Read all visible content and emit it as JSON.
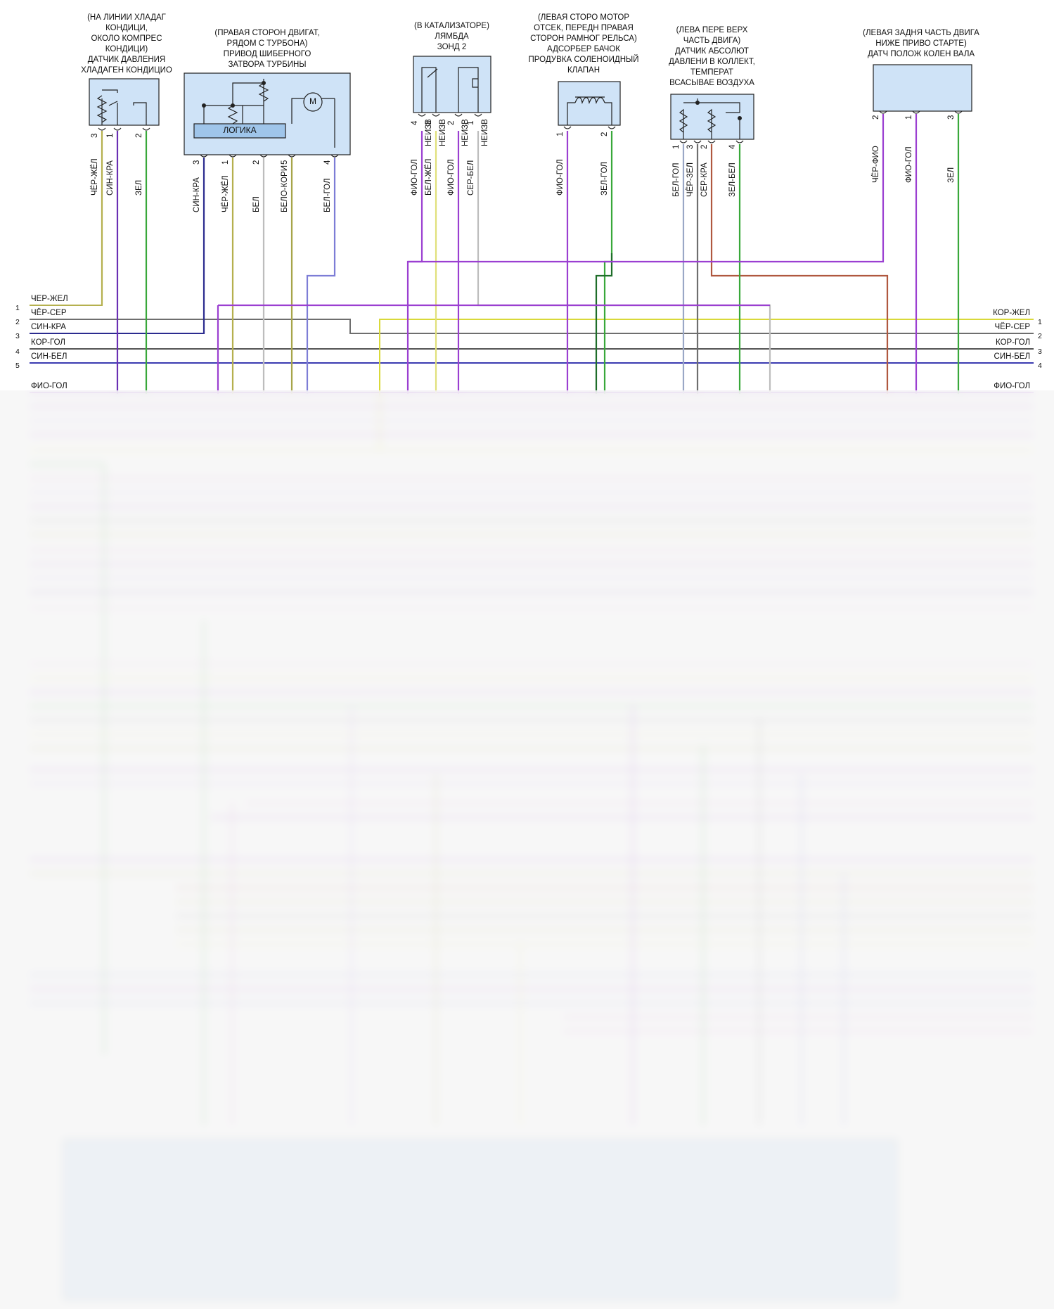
{
  "components": [
    {
      "id": "ac-sensor",
      "caption": [
        "(НА ЛИНИИ ХЛАДАГ",
        "КОНДИЦИ,",
        "ОКОЛО КОМПРЕС",
        "КОНДИЦИ)",
        "ДАТЧИК ДАВЛЕНИЯ",
        "ХЛАДАГЕН КОНДИЦИО"
      ],
      "pins": [
        "3",
        "1",
        "2"
      ],
      "wires": [
        "ЧЁР-ЖЁЛ",
        "СИН-КРА",
        "ЗЕЛ"
      ]
    },
    {
      "id": "turbo-actuator",
      "caption": [
        "(ПРАВАЯ СТОРОН ДВИГАТ,",
        "РЯДОМ С ТУРБОНА)",
        "ПРИВОД ШИБЕРНОГО",
        "ЗАТВОРА ТУРБИНЫ"
      ],
      "inner_label": "ЛОГИКА",
      "motor": "M",
      "pins": [
        "3",
        "1",
        "2",
        "5",
        "4"
      ],
      "wires": [
        "СИН-КРА",
        "ЧЁР-ЖЁЛ",
        "БЕЛ",
        "БЕЛО-КОРИ",
        "БЕЛ-ГОЛ"
      ]
    },
    {
      "id": "lambda-2",
      "caption": [
        "(В КАТАЛИЗАТОРЕ)",
        "ЛЯМБДА",
        "ЗОНД 2"
      ],
      "pins": [
        "4",
        "3",
        "2",
        "1"
      ],
      "pin_notes": [
        "НЕИЗВ",
        "НЕИЗВ",
        "НЕИЗВ",
        "НЕИЗВ"
      ],
      "wires": [
        "ФИО-ГОЛ",
        "БЕЛ-ЖЁЛ",
        "ФИО-ГОЛ",
        "СЕР-БЕЛ"
      ]
    },
    {
      "id": "purge-valve",
      "caption": [
        "(ЛЕВАЯ СТОРО МОТОР",
        "ОТСЕК, ПЕРЕДН ПРАВАЯ",
        "СТОРОН РАМНОГ РЕЛЬСА)",
        "АДСОРБЕР БАЧОК",
        "ПРОДУВКА СОЛЕНОИДНЫЙ",
        "КЛАПАН"
      ],
      "pins": [
        "1",
        "2"
      ],
      "wires": [
        "ФИО-ГОЛ",
        "ЗЕЛ-ГОЛ"
      ]
    },
    {
      "id": "map-sensor",
      "caption": [
        "(ЛЕВА ПЕРЕ ВЕРХ",
        "ЧАСТЬ ДВИГА)",
        "ДАТЧИК АБСОЛЮТ",
        "ДАВЛЕНИ В КОЛЛЕКТ,",
        "ТЕМПЕРАТ",
        "ВСАСЫВАЕ ВОЗДУХА"
      ],
      "pins": [
        "1",
        "3",
        "2",
        "4"
      ],
      "wires": [
        "БЕЛ-ГОЛ",
        "ЧЁР-ЗЕЛ",
        "СЕР-КРА",
        "ЗЕЛ-БЕЛ"
      ]
    },
    {
      "id": "ckp-sensor",
      "caption": [
        "(ЛЕВАЯ ЗАДНЯ ЧАСТЬ ДВИГА",
        "НИЖЕ ПРИВО СТАРТЕ)",
        "ДАТЧ ПОЛОЖ КОЛЕН ВАЛА"
      ],
      "pins": [
        "2",
        "1",
        "3"
      ],
      "wires": [
        "ЧЁР-ФИО",
        "ФИО-ГОЛ",
        "ЗЕЛ"
      ]
    }
  ],
  "left_bus": [
    {
      "num": "1",
      "label": "ЧЁР-ЖЁЛ"
    },
    {
      "num": "2",
      "label": "ЧЁР-СЕР"
    },
    {
      "num": "3",
      "label": "СИН-КРА"
    },
    {
      "num": "4",
      "label": "КОР-ГОЛ"
    },
    {
      "num": "5",
      "label": "СИН-БЕЛ"
    },
    {
      "num": "",
      "label": "ФИО-ГОЛ"
    }
  ],
  "right_bus": [
    {
      "num": "1",
      "label": "КОР-ЖЁЛ"
    },
    {
      "num": "2",
      "label": "ЧЁР-СЕР"
    },
    {
      "num": "3",
      "label": "КОР-ГОЛ"
    },
    {
      "num": "4",
      "label": "СИН-БЕЛ"
    },
    {
      "num": "",
      "label": "ФИО-ГОЛ"
    }
  ],
  "colors": {
    "component_fill": "#cfe3f7",
    "purple": "#9b3fd1",
    "violet_light": "#b88ae8",
    "green": "#39a83a",
    "dark_green": "#1f6e2a",
    "yellow": "#d9d93a",
    "olive": "#a7a54a",
    "gray": "#7c7c7c",
    "light_gray": "#bdbdbd",
    "navy": "#2b2b8f",
    "brown_red": "#b0583f",
    "lavender": "#7d7dd6"
  }
}
